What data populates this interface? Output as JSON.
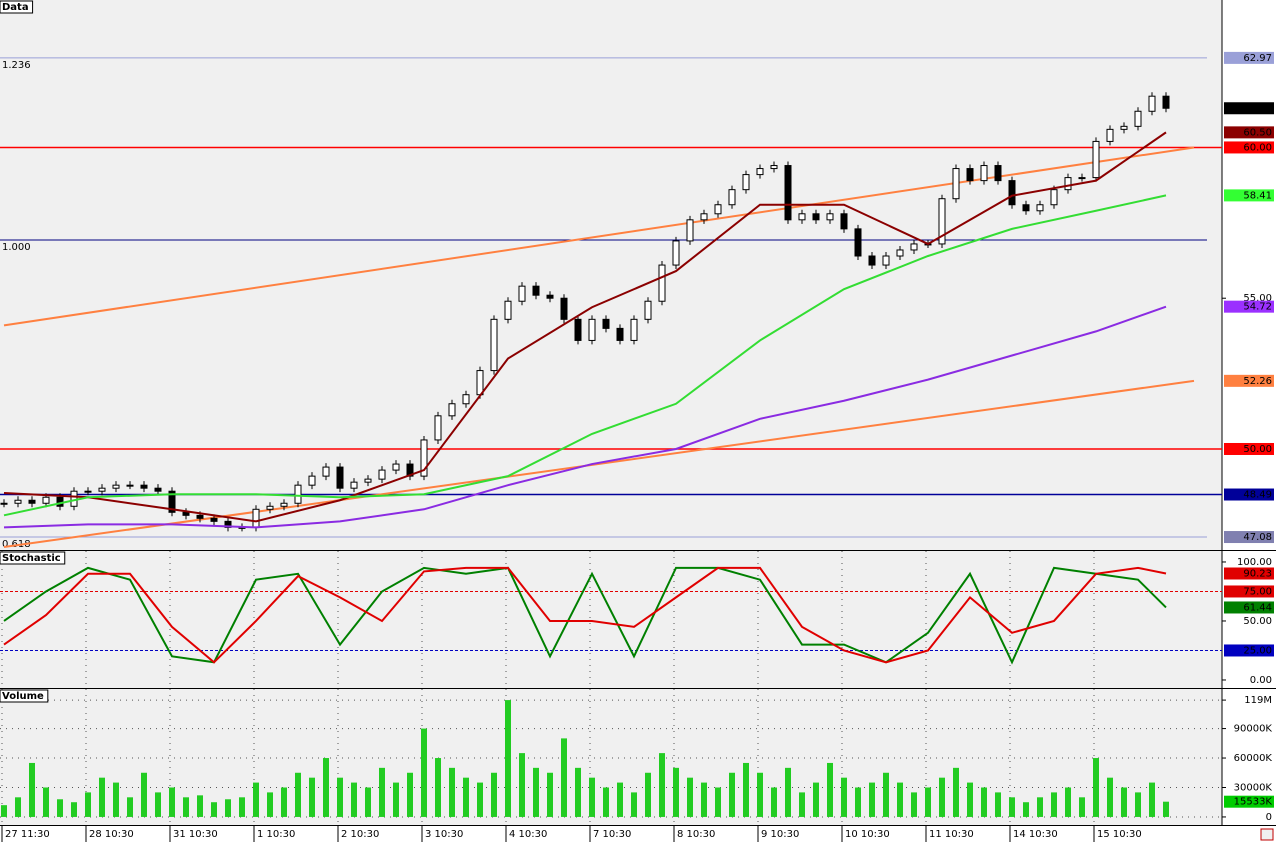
{
  "chart_data": [
    {
      "type": "candlestick",
      "title": "Data",
      "values": [
        48.2,
        48.3,
        48.2,
        48.4,
        48.1,
        48.6,
        48.6,
        48.7,
        48.8,
        48.8,
        48.7,
        48.6,
        47.9,
        47.8,
        47.7,
        47.6,
        47.4,
        47.4,
        48.0,
        48.1,
        48.2,
        48.8,
        49.1,
        49.4,
        48.7,
        48.9,
        49.0,
        49.3,
        49.5,
        49.1,
        50.3,
        51.1,
        51.5,
        51.8,
        52.6,
        54.3,
        54.9,
        55.4,
        55.1,
        55.0,
        54.3,
        53.6,
        54.3,
        54.0,
        53.6,
        54.3,
        54.9,
        56.1,
        56.9,
        57.6,
        57.8,
        58.1,
        58.6,
        59.1,
        59.3,
        59.4,
        57.6,
        57.8,
        57.6,
        57.8,
        57.3,
        56.4,
        56.1,
        56.4,
        56.6,
        56.8,
        56.8,
        58.3,
        59.3,
        58.9,
        59.4,
        58.9,
        58.1,
        57.9,
        58.1,
        58.6,
        59.0,
        59.0,
        60.2,
        60.6,
        60.7,
        61.2,
        61.7,
        61.3
      ],
      "up_color": "#ffffff",
      "down_color": "#000000",
      "ylim": [
        46.65,
        64.89
      ],
      "yticks": [
        {
          "value": 55,
          "label": "55.00"
        }
      ],
      "series": [
        {
          "color": "#8b0000",
          "x": [
            0,
            6,
            12,
            18,
            24,
            30,
            36,
            42,
            48,
            54,
            60,
            66,
            72,
            78,
            83
          ],
          "values": [
            48.54,
            48.4,
            48.0,
            47.6,
            48.3,
            49.3,
            53.0,
            54.7,
            55.9,
            58.1,
            58.1,
            56.8,
            58.4,
            58.9,
            60.5
          ]
        },
        {
          "color": "#33dd33",
          "x": [
            0,
            6,
            12,
            18,
            24,
            30,
            36,
            42,
            48,
            54,
            60,
            66,
            72,
            78,
            83
          ],
          "values": [
            47.8,
            48.4,
            48.5,
            48.5,
            48.4,
            48.5,
            49.1,
            50.5,
            51.5,
            53.6,
            55.3,
            56.4,
            57.3,
            57.9,
            58.41
          ]
        },
        {
          "color": "#8a2be2",
          "x": [
            0,
            6,
            12,
            18,
            24,
            30,
            36,
            42,
            48,
            54,
            60,
            66,
            72,
            78,
            83
          ],
          "values": [
            47.4,
            47.5,
            47.5,
            47.4,
            47.6,
            48.0,
            48.8,
            49.5,
            50.0,
            51.0,
            51.6,
            52.3,
            53.1,
            53.9,
            54.72
          ]
        }
      ],
      "trendlines": [
        {
          "color": "#ff8040",
          "x": [
            0,
            85
          ],
          "values": [
            54.1,
            60.0
          ]
        },
        {
          "color": "#ff8040",
          "x": [
            0,
            85
          ],
          "values": [
            46.75,
            52.26
          ]
        }
      ],
      "fib": [
        {
          "value": 62.97,
          "label": "1.236",
          "color": "#9aa0d8"
        },
        {
          "value": 56.93,
          "label": "1.000",
          "color": "#000080"
        },
        {
          "value": 47.08,
          "label": "0.618",
          "color": "#9aa0d8"
        }
      ],
      "levels": [
        {
          "value": 62.97,
          "label": "62.97",
          "color": "#9aa0d8",
          "line": false
        },
        {
          "value": 61.3,
          "label": "61.30",
          "color": "#000000",
          "line": false
        },
        {
          "value": 60.5,
          "label": "60.50",
          "color": "#8b0000",
          "line": false
        },
        {
          "value": 60,
          "label": "60.00",
          "color": "#ff0000",
          "line": true
        },
        {
          "value": 58.41,
          "label": "58.41",
          "color": "#33ff33",
          "line": false
        },
        {
          "value": 54.72,
          "label": "54.72",
          "color": "#9b30ff",
          "line": false
        },
        {
          "value": 52.26,
          "label": "52.26",
          "color": "#ff8040",
          "line": false
        },
        {
          "value": 50,
          "label": "50.00",
          "color": "#ff0000",
          "line": true
        },
        {
          "value": 48.49,
          "label": "48.49",
          "color": "#000099",
          "line": true
        },
        {
          "value": 47.08,
          "label": "47.08",
          "color": "#8080b0",
          "line": false
        }
      ]
    },
    {
      "type": "line",
      "title": "Stochastic",
      "ylim": [
        -6.8,
        109.3
      ],
      "yticks": [
        {
          "value": 100,
          "label": "100.00"
        },
        {
          "value": 50,
          "label": "50.00"
        },
        {
          "value": 0,
          "label": "0.00"
        }
      ],
      "series": [
        {
          "color": "#008000",
          "x": [
            0,
            3,
            6,
            9,
            12,
            15,
            18,
            21,
            24,
            27,
            30,
            33,
            36,
            39,
            42,
            45,
            48,
            51,
            54,
            57,
            60,
            63,
            66,
            69,
            72,
            75,
            78,
            81,
            83
          ],
          "values": [
            50,
            75,
            95,
            85,
            20,
            15,
            85,
            90,
            30,
            75,
            95,
            90,
            95,
            20,
            90,
            20,
            95,
            95,
            85,
            30,
            30,
            15,
            40,
            90,
            15,
            95,
            90,
            85,
            61.44
          ]
        },
        {
          "color": "#e00000",
          "x": [
            0,
            3,
            6,
            9,
            12,
            15,
            18,
            21,
            24,
            27,
            30,
            33,
            36,
            39,
            42,
            45,
            48,
            51,
            54,
            57,
            60,
            63,
            66,
            69,
            72,
            75,
            78,
            81,
            83
          ],
          "values": [
            30,
            55,
            90,
            90,
            45,
            15,
            50,
            88,
            70,
            50,
            92,
            95,
            95,
            50,
            50,
            45,
            70,
            95,
            95,
            45,
            25,
            15,
            25,
            70,
            40,
            50,
            90,
            95,
            90.23
          ]
        }
      ],
      "levels": [
        {
          "value": 90.23,
          "label": "90.23",
          "color": "#e00000",
          "line": false
        },
        {
          "value": 75,
          "label": "75.00",
          "color": "#e00000",
          "line": true
        },
        {
          "value": 61.44,
          "label": "61.44",
          "color": "#008000",
          "line": false
        },
        {
          "value": 25,
          "label": "25.00",
          "color": "#0000c0",
          "line": true
        }
      ]
    },
    {
      "type": "bar",
      "title": "Volume",
      "values": [
        12000,
        20000,
        55000,
        30000,
        18000,
        15000,
        25000,
        40000,
        35000,
        20000,
        45000,
        25000,
        30000,
        20000,
        22000,
        15000,
        18000,
        20000,
        35000,
        25000,
        30000,
        45000,
        40000,
        60000,
        40000,
        35000,
        30000,
        50000,
        35000,
        45000,
        90000,
        60000,
        50000,
        40000,
        35000,
        45000,
        119000,
        65000,
        50000,
        45000,
        80000,
        50000,
        40000,
        30000,
        35000,
        25000,
        45000,
        65000,
        50000,
        40000,
        35000,
        30000,
        45000,
        55000,
        45000,
        30000,
        50000,
        25000,
        35000,
        55000,
        40000,
        30000,
        35000,
        45000,
        35000,
        25000,
        30000,
        40000,
        50000,
        35000,
        30000,
        25000,
        20000,
        15000,
        20000,
        25000,
        30000,
        20000,
        60000,
        40000,
        30000,
        25000,
        35000,
        15533
      ],
      "color": "#22cc22",
      "ylim": [
        -8200,
        130300
      ],
      "yticks": [
        {
          "value": 119000,
          "label": "119M"
        },
        {
          "value": 90000,
          "label": "90000K"
        },
        {
          "value": 60000,
          "label": "60000K"
        },
        {
          "value": 30000,
          "label": "30000K"
        },
        0
      ],
      "levels": [
        {
          "value": 15533,
          "label": "15533K",
          "color": "#00cc00",
          "line": false
        }
      ],
      "xticks": [
        {
          "value": 0,
          "label": "27 11:30"
        },
        {
          "value": 6,
          "label": "28 10:30"
        },
        {
          "value": 12,
          "label": "31 10:30"
        },
        {
          "value": 18,
          "label": "1 10:30"
        },
        {
          "value": 24,
          "label": "2 10:30"
        },
        {
          "value": 30,
          "label": "3 10:30"
        },
        {
          "value": 36,
          "label": "4 10:30"
        },
        {
          "value": 42,
          "label": "7 10:30"
        },
        {
          "value": 48,
          "label": "8 10:30"
        },
        {
          "value": 54,
          "label": "9 10:30"
        },
        {
          "value": 60,
          "label": "10 10:30"
        },
        {
          "value": 66,
          "label": "11 10:30"
        },
        {
          "value": 72,
          "label": "14 10:30"
        },
        {
          "value": 78,
          "label": "15 10:30"
        }
      ]
    }
  ]
}
